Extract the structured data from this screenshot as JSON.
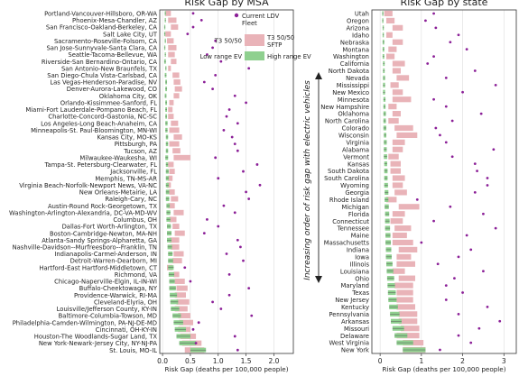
{
  "chart_data": [
    {
      "type": "range",
      "title": "Risk Gap by MSA",
      "xlabel": "Risk Gap (deaths per 100,000 people)",
      "xlim": [
        -0.05,
        2.35
      ],
      "xticks": [
        0.0,
        0.5,
        1.0,
        1.5,
        2.0
      ],
      "xtick_labels": [
        "0.0",
        "0.5",
        "1.0",
        "1.5",
        "2.0"
      ],
      "grid": "x",
      "categories": [
        "Portland-Vancouver-Hillsboro, OR-WA",
        "Phoenix-Mesa-Chandler, AZ",
        "San Francisco-Oakland-Berkeley, CA",
        "Salt Lake City, UT",
        "Sacramento-Roseville-Folsom, CA",
        "San Jose-Sunnyvale-Santa Clara, CA",
        "Seattle-Tacoma-Bellevue, WA",
        "Riverside-San Bernardino-Ontario, CA",
        "San Antonio-New Braunfels, TX",
        "San Diego-Chula Vista-Carlsbad, CA",
        "Las Vegas-Henderson-Paradise, NV",
        "Denver-Aurora-Lakewood, CO",
        "Oklahoma City, OK",
        "Orlando-Kissimmee-Sanford, FL",
        "Miami-Fort Lauderdale-Pompano Beach, FL",
        "Charlotte-Concord-Gastonia, NC-SC",
        "Los Angeles-Long Beach-Anaheim, CA",
        "Minneapolis-St. Paul-Bloomington, MN-WI",
        "Kansas City, MO-KS",
        "Pittsburgh, PA",
        "Tucson, AZ",
        "Milwaukee-Waukesha, WI",
        "Tampa-St. Petersburg-Clearwater, FL",
        "Jacksonville, FL",
        "Memphis, TN-MS-AR",
        "Virginia Beach-Norfolk-Newport News, VA-NC",
        "New Orleans-Metairie, LA",
        "Raleigh-Cary, NC",
        "Austin-Round Rock-Georgetown, TX",
        "Washington-Arlington-Alexandria, DC-VA-MD-WV",
        "Columbus, OH",
        "Dallas-Fort Worth-Arlington, TX",
        "Boston-Cambridge-Newton, MA-NH",
        "Atlanta-Sandy Springs-Alpharetta, GA",
        "Nashville-Davidson--Murfreesboro--Franklin, TN",
        "Indianapolis-Carmel-Anderson, IN",
        "Detroit-Warren-Dearborn, MI",
        "Hartford-East Hartford-Middletown, CT",
        "Richmond, VA",
        "Chicago-Naperville-Elgin, IL-IN-WI",
        "Buffalo-Cheektowaga, NY",
        "Providence-Warwick, RI-MA",
        "Cleveland-Elyria, OH",
        "Louisville/Jefferson County, KY-IN",
        "Baltimore-Columbia-Towson, MD",
        "Philadelphia-Camden-Wilmington, PA-NJ-DE-MD",
        "Cincinnati, OH-KY-IN",
        "Houston-The Woodlands-Sugar Land, TX",
        "New York-Newark-Jersey City, NY-NJ-PA",
        "St. Louis, MO-IL"
      ],
      "series": [
        {
          "name": "Current LDV Fleet",
          "values": [
            0.55,
            0.7,
            0.55,
            0.45,
            0.95,
            0.9,
            0.8,
            1.05,
            1.55,
            0.95,
            0.75,
            0.9,
            1.3,
            1.5,
            1.2,
            1.15,
            1.35,
            1.1,
            1.25,
            1.3,
            1.35,
            0.95,
            1.7,
            1.45,
            1.0,
            1.75,
            1.5,
            1.55,
            1.1,
            1.3,
            0.8,
            1.0,
            0.75,
            1.35,
            1.4,
            1.15,
            1.45,
            0.4,
            1.2,
            0.5,
            1.55,
            1.2,
            0.9,
            1.05,
            1.6,
            0.65,
            0.55,
            1.3,
            0.6,
            1.35
          ]
        },
        {
          "name": "T3 50/50 SFTP",
          "low": [
            0.05,
            0.1,
            0.15,
            0.05,
            0.08,
            0.1,
            0.1,
            0.15,
            0.1,
            0.18,
            0.2,
            0.22,
            0.2,
            0.12,
            0.1,
            0.1,
            0.15,
            0.12,
            0.2,
            0.12,
            0.18,
            0.2,
            0.1,
            0.12,
            0.1,
            0.08,
            0.12,
            0.15,
            0.1,
            0.2,
            0.12,
            0.18,
            0.22,
            0.12,
            0.15,
            0.2,
            0.18,
            0.08,
            0.2,
            0.22,
            0.25,
            0.22,
            0.25,
            0.22,
            0.28,
            0.3,
            0.28,
            0.32,
            0.35,
            0.4
          ],
          "high": [
            0.15,
            0.25,
            0.28,
            0.15,
            0.2,
            0.25,
            0.22,
            0.25,
            0.15,
            0.3,
            0.32,
            0.35,
            0.3,
            0.2,
            0.18,
            0.2,
            0.28,
            0.3,
            0.35,
            0.3,
            0.32,
            0.5,
            0.2,
            0.22,
            0.18,
            0.15,
            0.22,
            0.28,
            0.22,
            0.38,
            0.25,
            0.3,
            0.4,
            0.3,
            0.3,
            0.38,
            0.35,
            0.18,
            0.3,
            0.4,
            0.45,
            0.42,
            0.48,
            0.45,
            0.5,
            0.55,
            0.5,
            0.6,
            0.7,
            0.75
          ]
        },
        {
          "name": "EV range",
          "low": [
            0.04,
            0.04,
            0.03,
            0.03,
            0.04,
            0.03,
            0.04,
            0.03,
            0.05,
            0.04,
            0.05,
            0.05,
            0.04,
            0.05,
            0.05,
            0.05,
            0.05,
            0.05,
            0.06,
            0.06,
            0.06,
            0.05,
            0.06,
            0.06,
            0.06,
            0.06,
            0.06,
            0.06,
            0.07,
            0.07,
            0.07,
            0.08,
            0.08,
            0.08,
            0.09,
            0.1,
            0.1,
            0.1,
            0.11,
            0.12,
            0.12,
            0.13,
            0.14,
            0.15,
            0.18,
            0.2,
            0.22,
            0.25,
            0.3,
            0.5
          ],
          "high": [
            0.06,
            0.06,
            0.05,
            0.05,
            0.06,
            0.05,
            0.06,
            0.06,
            0.07,
            0.07,
            0.08,
            0.08,
            0.07,
            0.08,
            0.08,
            0.08,
            0.09,
            0.09,
            0.1,
            0.1,
            0.1,
            0.1,
            0.1,
            0.11,
            0.11,
            0.11,
            0.12,
            0.12,
            0.13,
            0.14,
            0.14,
            0.15,
            0.16,
            0.16,
            0.17,
            0.18,
            0.19,
            0.2,
            0.21,
            0.22,
            0.24,
            0.26,
            0.28,
            0.3,
            0.33,
            0.37,
            0.42,
            0.5,
            0.6,
            0.78
          ]
        }
      ]
    },
    {
      "type": "range",
      "title": "Risk Gap by state",
      "xlabel": "Risk Gap (deaths per 100,000 people)",
      "xlim": [
        -0.2,
        3.3
      ],
      "xticks": [
        0,
        1,
        2,
        3
      ],
      "xtick_labels": [
        "0",
        "1",
        "2",
        "3"
      ],
      "grid": "x",
      "categories": [
        "Utah",
        "Oregon",
        "Arizona",
        "Idaho",
        "Nebraska",
        "Montana",
        "Washington",
        "California",
        "North Dakota",
        "Nevada",
        "Mississippi",
        "New Mexico",
        "Minnesota",
        "New Hampshire",
        "Oklahoma",
        "North Carolina",
        "Colorado",
        "Wisconsin",
        "Virginia",
        "Alabama",
        "Vermont",
        "Kansas",
        "South Dakota",
        "South Carolina",
        "Wyoming",
        "Georgia",
        "Rhode Island",
        "Michigan",
        "Florida",
        "Connecticut",
        "Tennessee",
        "Maine",
        "Massachusetts",
        "Indiana",
        "Iowa",
        "Illinois",
        "Louisiana",
        "Ohio",
        "Maryland",
        "Texas",
        "New Jersey",
        "Kentucky",
        "Pennsylvania",
        "Arkansas",
        "Missouri",
        "Delaware",
        "West Virginia",
        "New York"
      ],
      "series": [
        {
          "name": "Current LDV Fleet",
          "values": [
            1.3,
            1.1,
            1.35,
            1.9,
            1.7,
            2.1,
            1.3,
            1.15,
            2.3,
            1.6,
            2.8,
            2.0,
            1.3,
            1.6,
            2.45,
            1.75,
            1.35,
            1.45,
            1.6,
            2.75,
            1.75,
            2.3,
            2.35,
            2.6,
            2.6,
            2.3,
            0.9,
            1.7,
            2.5,
            1.3,
            2.8,
            2.1,
            1.0,
            2.2,
            1.9,
            1.4,
            2.5,
            1.8,
            1.6,
            2.0,
            1.6,
            2.6,
            1.9,
            2.9,
            2.4,
            1.9,
            2.2,
            1.45
          ]
        },
        {
          "name": "T3 50/50 SFTP",
          "low": [
            0.1,
            0.15,
            0.3,
            0.15,
            0.3,
            0.2,
            0.15,
            0.3,
            0.3,
            0.4,
            0.25,
            0.3,
            0.3,
            0.2,
            0.3,
            0.2,
            0.35,
            0.4,
            0.3,
            0.3,
            0.2,
            0.25,
            0.25,
            0.3,
            0.3,
            0.35,
            0.15,
            0.45,
            0.3,
            0.25,
            0.35,
            0.3,
            0.3,
            0.45,
            0.4,
            0.4,
            0.3,
            0.45,
            0.35,
            0.4,
            0.4,
            0.4,
            0.45,
            0.45,
            0.5,
            0.4,
            0.55,
            0.55
          ],
          "high": [
            0.3,
            0.35,
            0.55,
            0.3,
            0.55,
            0.4,
            0.35,
            0.6,
            0.5,
            0.7,
            0.45,
            0.55,
            0.75,
            0.4,
            0.5,
            0.45,
            0.8,
            0.9,
            0.6,
            0.55,
            0.45,
            0.5,
            0.5,
            0.6,
            0.55,
            0.65,
            0.4,
            0.95,
            0.6,
            0.55,
            0.75,
            0.65,
            0.8,
            0.9,
            0.75,
            0.85,
            0.6,
            0.85,
            0.8,
            0.8,
            0.8,
            0.85,
            0.9,
            0.9,
            0.95,
            0.95,
            1.05,
            1.1
          ]
        },
        {
          "name": "EV range",
          "low": [
            0.05,
            0.05,
            0.06,
            0.06,
            0.06,
            0.06,
            0.06,
            0.07,
            0.07,
            0.07,
            0.07,
            0.07,
            0.08,
            0.08,
            0.08,
            0.08,
            0.08,
            0.09,
            0.09,
            0.09,
            0.09,
            0.1,
            0.1,
            0.1,
            0.1,
            0.11,
            0.11,
            0.11,
            0.12,
            0.12,
            0.12,
            0.13,
            0.13,
            0.14,
            0.14,
            0.15,
            0.16,
            0.17,
            0.18,
            0.19,
            0.2,
            0.22,
            0.24,
            0.26,
            0.3,
            0.35,
            0.4,
            0.55
          ],
          "high": [
            0.08,
            0.08,
            0.09,
            0.09,
            0.1,
            0.1,
            0.1,
            0.11,
            0.11,
            0.12,
            0.12,
            0.12,
            0.13,
            0.13,
            0.14,
            0.14,
            0.15,
            0.15,
            0.16,
            0.16,
            0.17,
            0.17,
            0.18,
            0.18,
            0.19,
            0.2,
            0.2,
            0.21,
            0.22,
            0.23,
            0.24,
            0.25,
            0.26,
            0.27,
            0.28,
            0.3,
            0.32,
            0.34,
            0.36,
            0.38,
            0.4,
            0.43,
            0.47,
            0.52,
            0.58,
            0.66,
            0.8,
            1.1
          ]
        }
      ]
    }
  ],
  "legend": {
    "current": "Current LDV\nFleet",
    "t3_left": "T3 50/50",
    "t3_right": "T3 50/50\nSFTP",
    "ev_low": "Low range EV",
    "ev_high": "High range EV"
  },
  "middle_annotation": "Increasing order of  risk gap with electric vehicles",
  "colors": {
    "pink": "#e9b3b8",
    "green": "#8fd08f",
    "purple": "#8b1f97"
  }
}
